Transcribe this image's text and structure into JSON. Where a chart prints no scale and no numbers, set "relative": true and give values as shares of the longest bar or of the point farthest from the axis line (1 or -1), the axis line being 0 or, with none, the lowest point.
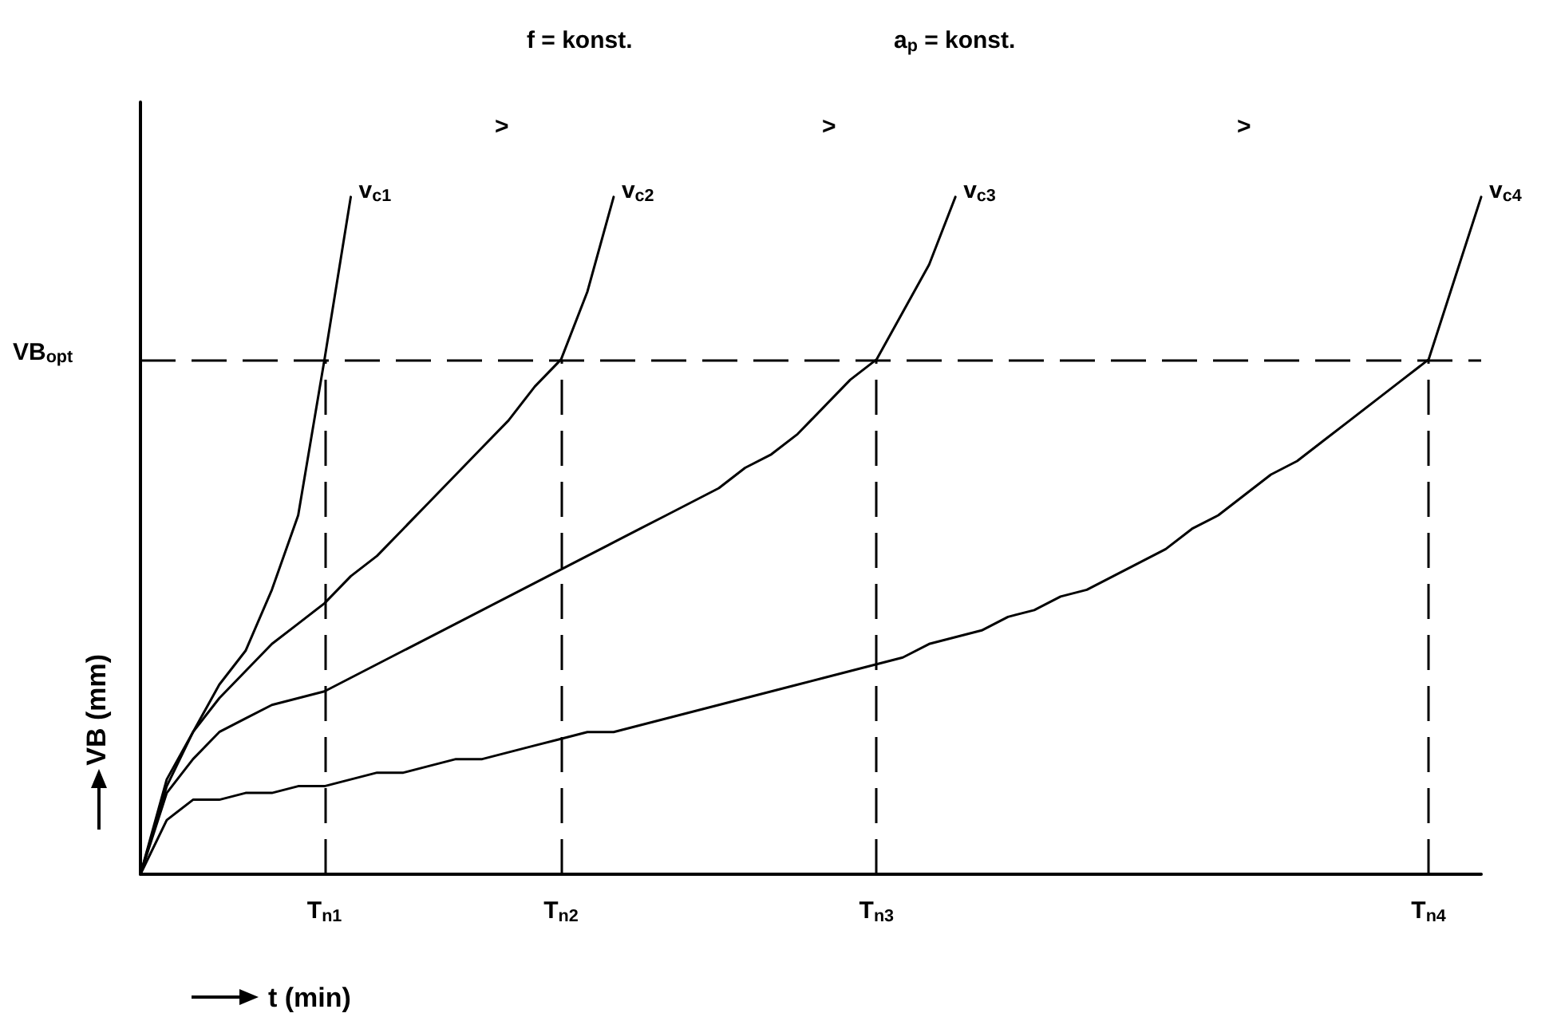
{
  "chart_data": {
    "type": "line",
    "relative": true,
    "xlabel": "t (min)",
    "ylabel": "VB (mm)",
    "annotations": [
      "f = konst.",
      "a$_{p}$ = konst.",
      ">",
      ">",
      ">"
    ],
    "categories": [
      null,
      null,
      null,
      null,
      null,
      null,
      null,
      "T$_{n1}$",
      null,
      null,
      null,
      null,
      null,
      null,
      null,
      null,
      "T$_{n2}$",
      null,
      null,
      null,
      null,
      null,
      null,
      null,
      null,
      null,
      null,
      null,
      "T$_{n3}$",
      null,
      null,
      null,
      null,
      null,
      null,
      null,
      null,
      null,
      null,
      null,
      null,
      null,
      null,
      null,
      null,
      null,
      null,
      null,
      null,
      "T$_{n4}$",
      null,
      null
    ],
    "legend": false,
    "line_style": "solid",
    "marker": "none",
    "ref_lines": [
      {
        "axis": "y",
        "value": 0.76,
        "label": "VB$_{opt}$",
        "line_style": "dashed",
        "color": "#000000"
      },
      {
        "axis": "x",
        "value": "T$_{n1}$",
        "line_style": "dashed",
        "color": "#000000"
      },
      {
        "axis": "x",
        "value": "T$_{n2}$",
        "line_style": "dashed",
        "color": "#000000"
      },
      {
        "axis": "x",
        "value": "T$_{n3}$",
        "line_style": "dashed",
        "color": "#000000"
      },
      {
        "axis": "x",
        "value": "T$_{n4}$",
        "line_style": "dashed",
        "color": "#000000"
      }
    ],
    "series": [
      {
        "name": "v$_{c1}$",
        "color": "#000000",
        "values": [
          0,
          0.13,
          0.21,
          0.28,
          0.33,
          0.42,
          0.53,
          0.76,
          1,
          null,
          null,
          null,
          null,
          null,
          null,
          null,
          null,
          null,
          null,
          null,
          null,
          null,
          null,
          null,
          null,
          null,
          null,
          null,
          null,
          null,
          null,
          null,
          null,
          null,
          null,
          null,
          null,
          null,
          null,
          null,
          null,
          null,
          null,
          null,
          null,
          null,
          null,
          null,
          null,
          null,
          null,
          null
        ]
      },
      {
        "name": "v$_{c2}$",
        "color": "#000000",
        "values": [
          0,
          0.14,
          0.21,
          0.26,
          0.3,
          0.34,
          0.37,
          0.4,
          0.44,
          0.47,
          0.51,
          0.55,
          0.59,
          0.63,
          0.67,
          0.72,
          0.76,
          0.86,
          1,
          null,
          null,
          null,
          null,
          null,
          null,
          null,
          null,
          null,
          null,
          null,
          null,
          null,
          null,
          null,
          null,
          null,
          null,
          null,
          null,
          null,
          null,
          null,
          null,
          null,
          null,
          null,
          null,
          null,
          null,
          null,
          null,
          null
        ]
      },
      {
        "name": "v$_{c3}$",
        "color": "#000000",
        "values": [
          0,
          0.12,
          0.17,
          0.21,
          0.23,
          0.25,
          0.26,
          0.27,
          0.29,
          0.31,
          0.33,
          0.35,
          0.37,
          0.39,
          0.41,
          0.43,
          0.45,
          0.47,
          0.49,
          0.51,
          0.53,
          0.55,
          0.57,
          0.6,
          0.62,
          0.65,
          0.69,
          0.73,
          0.76,
          0.83,
          0.9,
          1,
          null,
          null,
          null,
          null,
          null,
          null,
          null,
          null,
          null,
          null,
          null,
          null,
          null,
          null,
          null,
          null,
          null,
          null,
          null,
          null
        ]
      },
      {
        "name": "v$_{c4}$",
        "color": "#000000",
        "values": [
          0,
          0.08,
          0.11,
          0.11,
          0.12,
          0.12,
          0.13,
          0.13,
          0.14,
          0.15,
          0.15,
          0.16,
          0.17,
          0.17,
          0.18,
          0.19,
          0.2,
          0.21,
          0.21,
          0.22,
          0.23,
          0.24,
          0.25,
          0.26,
          0.27,
          0.28,
          0.29,
          0.3,
          0.31,
          0.32,
          0.34,
          0.35,
          0.36,
          0.38,
          0.39,
          0.41,
          0.42,
          0.44,
          0.46,
          0.48,
          0.51,
          0.53,
          0.56,
          0.59,
          0.61,
          0.64,
          0.67,
          0.7,
          0.73,
          0.76,
          0.88,
          1
        ]
      }
    ]
  }
}
